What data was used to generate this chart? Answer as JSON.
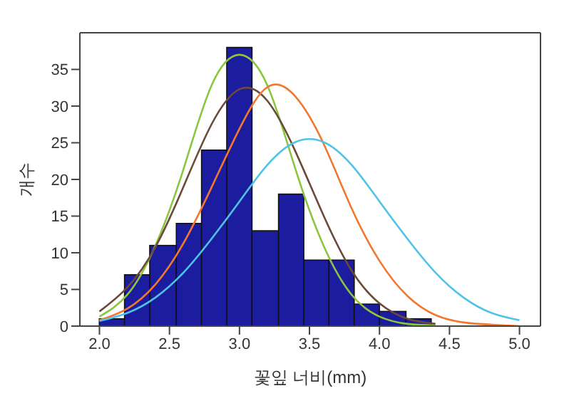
{
  "chart_data": {
    "type": "histogram",
    "xlabel": "꽃잎 너비(mm)",
    "ylabel": "개수",
    "bins": [
      2.0,
      2.18,
      2.36,
      2.55,
      2.73,
      2.91,
      3.09,
      3.28,
      3.46,
      3.64,
      3.82,
      4.0,
      4.19,
      4.37
    ],
    "values": [
      1,
      7,
      11,
      14,
      24,
      38,
      13,
      18,
      9,
      9,
      3,
      2,
      1
    ],
    "color": "#1c1c9e",
    "xlim": [
      1.86,
      5.15
    ],
    "xticks": [
      {
        "value": 2.0,
        "label": "2.0"
      },
      {
        "value": 2.5,
        "label": "2.5"
      },
      {
        "value": 3.0,
        "label": "3.0"
      },
      {
        "value": 3.5,
        "label": "3.5"
      },
      {
        "value": 4.0,
        "label": "4.0"
      },
      {
        "value": 4.5,
        "label": "4.5"
      },
      {
        "value": 5.0,
        "label": "5.0"
      }
    ],
    "ylim": [
      0,
      40
    ],
    "yticks": [
      0,
      5,
      10,
      15,
      20,
      25,
      30,
      35
    ],
    "series": [
      {
        "type": "line",
        "color": "#8cc63f",
        "x": [
          2.0,
          2.2,
          2.4,
          2.6,
          2.8,
          3.0,
          3.2,
          3.4,
          3.6,
          3.8,
          4.0,
          4.2,
          4.4
        ],
        "values": [
          1.3,
          4.3,
          11,
          21.4,
          32.8,
          37,
          32.8,
          21.4,
          11,
          4.3,
          1.3,
          0.3,
          0.1
        ]
      },
      {
        "type": "line",
        "color": "#6b4a3a",
        "x": [
          2.0,
          2.2,
          2.4,
          2.6,
          2.8,
          3.0,
          3.2,
          3.4,
          3.6,
          3.8,
          4.0,
          4.2,
          4.4
        ],
        "values": [
          2,
          5.3,
          10.8,
          19,
          27.5,
          32.3,
          30.7,
          23.8,
          15.1,
          7.6,
          3.1,
          1,
          0.3
        ]
      },
      {
        "type": "line",
        "color": "#f07830",
        "x": [
          2.0,
          2.2,
          2.4,
          2.6,
          2.8,
          3.0,
          3.2,
          3.4,
          3.6,
          3.8,
          4.0,
          4.2,
          4.4,
          4.6,
          4.8,
          5.0
        ],
        "values": [
          0.8,
          2.4,
          5.7,
          11.3,
          18.9,
          26.9,
          32.6,
          31.3,
          24.9,
          16.1,
          8.9,
          4.1,
          1.5,
          0.5,
          0.2,
          0
        ]
      },
      {
        "type": "line",
        "color": "#4fc3e8",
        "x": [
          2.0,
          2.2,
          2.4,
          2.6,
          2.8,
          3.0,
          3.2,
          3.4,
          3.6,
          3.8,
          4.0,
          4.2,
          4.4,
          4.6,
          4.8,
          5.0
        ],
        "values": [
          0.7,
          1.8,
          3.9,
          7.3,
          11.9,
          17,
          22,
          25.1,
          25.1,
          22,
          17,
          11.9,
          7.3,
          3.9,
          1.8,
          0.8
        ]
      }
    ]
  }
}
